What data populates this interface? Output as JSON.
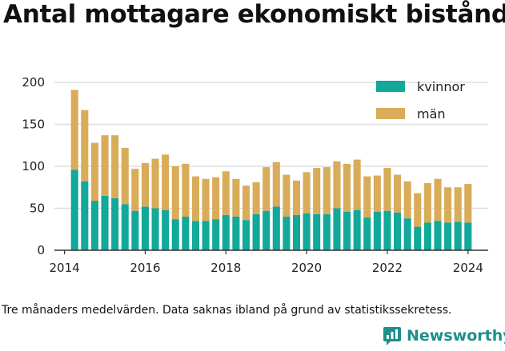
{
  "title": "Antal mottagare ekonomiskt bistånd",
  "footnote": "Tre månaders medelvärden. Data saknas ibland på grund av statistikssekretess.",
  "brand": {
    "name": "Newsworthy",
    "icon": "newsworthy-logo-icon"
  },
  "colors": {
    "kvinnor": "#12a89a",
    "man": "#d9ac59",
    "grid": "#dddddd",
    "text": "#222222"
  },
  "chart_data": {
    "type": "bar",
    "stacked": true,
    "title": "Antal mottagare ekonomiskt bistånd",
    "xlabel": "",
    "ylabel": "",
    "ylim": [
      0,
      200
    ],
    "xlim": [
      2013.75,
      2024.5
    ],
    "yticks": [
      0,
      50,
      100,
      150,
      200
    ],
    "xticks": [
      2014,
      2016,
      2018,
      2020,
      2022,
      2024
    ],
    "grid": true,
    "legend_position": "top-right",
    "x": [
      2014.25,
      2014.5,
      2014.75,
      2015.0,
      2015.25,
      2015.5,
      2015.75,
      2016.0,
      2016.25,
      2016.5,
      2016.75,
      2017.0,
      2017.25,
      2017.5,
      2017.75,
      2018.0,
      2018.25,
      2018.5,
      2018.75,
      2019.0,
      2019.25,
      2019.5,
      2019.75,
      2020.0,
      2020.25,
      2020.5,
      2020.75,
      2021.0,
      2021.25,
      2021.5,
      2021.75,
      2022.0,
      2022.25,
      2022.5,
      2022.75,
      2023.0,
      2023.25,
      2023.5,
      2023.75,
      2024.0
    ],
    "series": [
      {
        "name": "kvinnor",
        "values": [
          96,
          82,
          59,
          65,
          62,
          55,
          47,
          52,
          50,
          48,
          37,
          40,
          35,
          35,
          37,
          42,
          40,
          36,
          43,
          47,
          52,
          40,
          42,
          44,
          43,
          43,
          50,
          46,
          48,
          39,
          46,
          47,
          45,
          38,
          28,
          33,
          35,
          33,
          34,
          33
        ]
      },
      {
        "name": "män",
        "values": [
          95,
          85,
          69,
          72,
          75,
          67,
          50,
          52,
          59,
          66,
          63,
          63,
          53,
          50,
          50,
          52,
          45,
          41,
          38,
          52,
          53,
          50,
          41,
          49,
          55,
          56,
          56,
          57,
          60,
          49,
          43,
          51,
          45,
          44,
          40,
          47,
          50,
          42,
          41,
          46
        ]
      }
    ]
  }
}
